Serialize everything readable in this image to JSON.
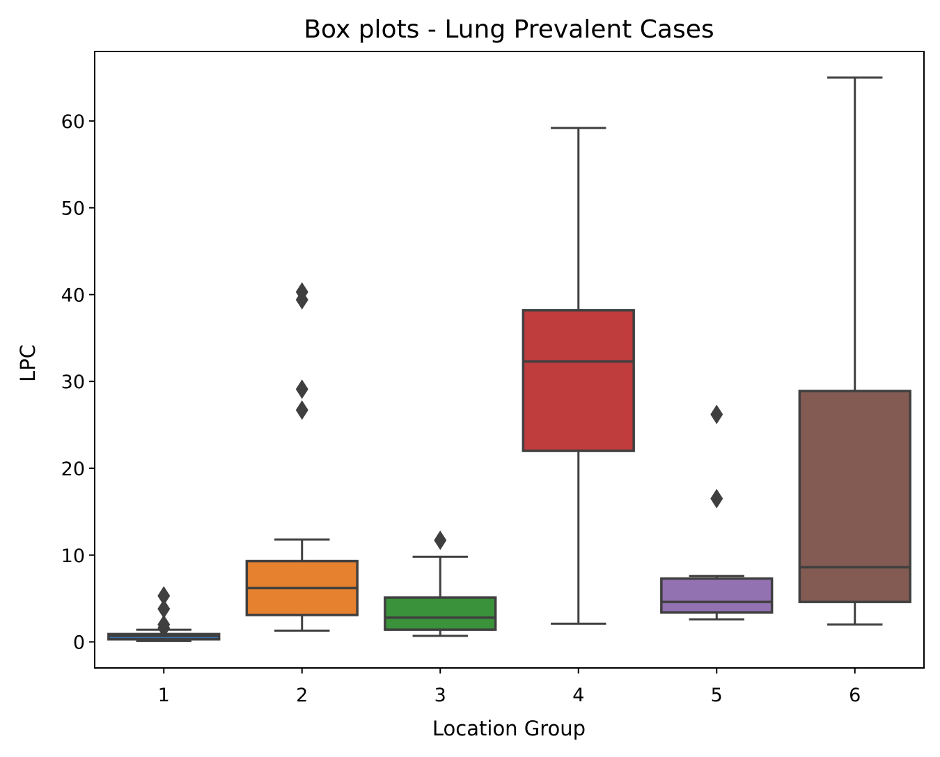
{
  "chart_data": {
    "type": "box",
    "title": "Box plots - Lung Prevalent Cases",
    "xlabel": "Location Group",
    "ylabel": "LPC",
    "ylim": [
      -3,
      68
    ],
    "yticks": [
      0,
      10,
      20,
      30,
      40,
      50,
      60
    ],
    "grid": false,
    "legend": "none",
    "categories": [
      "1",
      "2",
      "3",
      "4",
      "5",
      "6"
    ],
    "boxes": [
      {
        "category": "1",
        "color": "#3a75af",
        "whisker_low": 0.1,
        "q1": 0.3,
        "median": 0.7,
        "q3": 0.9,
        "whisker_high": 1.4,
        "outliers": [
          1.6,
          2.0,
          3.8,
          5.3
        ]
      },
      {
        "category": "2",
        "color": "#e6812f",
        "whisker_low": 1.3,
        "q1": 3.1,
        "median": 6.2,
        "q3": 9.3,
        "whisker_high": 11.8,
        "outliers": [
          26.7,
          29.1,
          39.4,
          40.3
        ]
      },
      {
        "category": "3",
        "color": "#3a923a",
        "whisker_low": 0.7,
        "q1": 1.4,
        "median": 2.8,
        "q3": 5.1,
        "whisker_high": 9.8,
        "outliers": [
          11.7
        ]
      },
      {
        "category": "4",
        "color": "#c03d3e",
        "whisker_low": 2.1,
        "q1": 22.0,
        "median": 32.3,
        "q3": 38.2,
        "whisker_high": 59.2,
        "outliers": []
      },
      {
        "category": "5",
        "color": "#9372b2",
        "whisker_low": 2.6,
        "q1": 3.4,
        "median": 4.6,
        "q3": 7.3,
        "whisker_high": 7.6,
        "outliers": [
          16.5,
          26.2
        ]
      },
      {
        "category": "6",
        "color": "#845b53",
        "whisker_low": 2.0,
        "q1": 4.6,
        "median": 8.6,
        "q3": 28.9,
        "whisker_high": 65.0,
        "outliers": []
      }
    ]
  }
}
